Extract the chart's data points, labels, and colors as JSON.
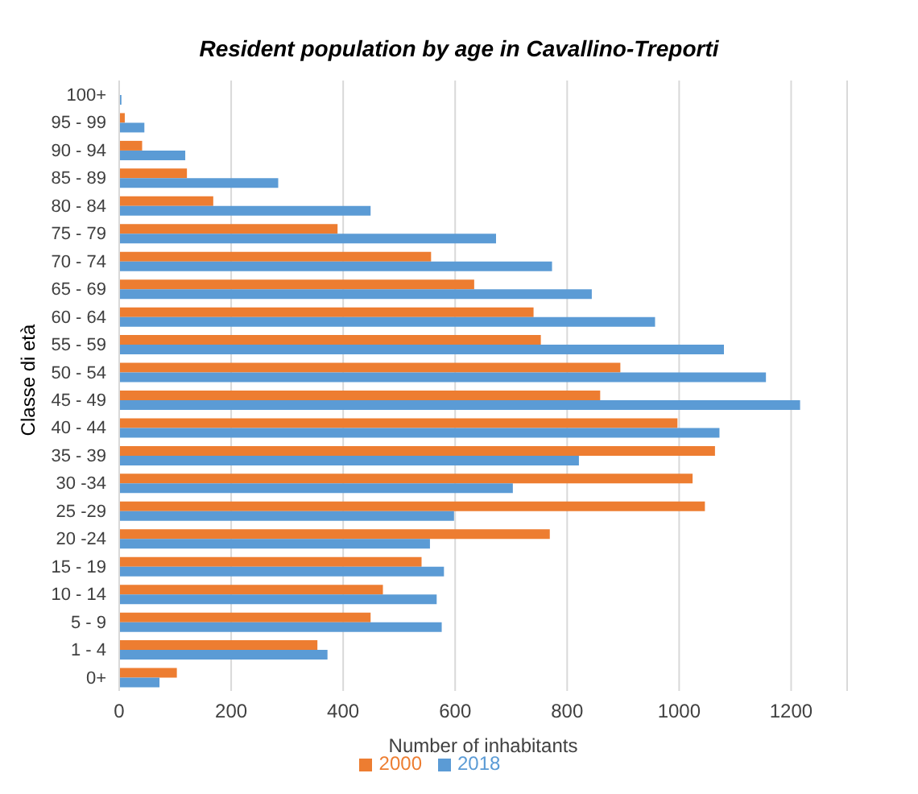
{
  "chart_data": {
    "type": "bar",
    "orientation": "horizontal",
    "title": "Resident population by age in Cavallino-Treporti",
    "xlabel": "Number of inhabitants",
    "ylabel": "Classe di età",
    "categories": [
      "100+",
      "95 - 99",
      "90 - 94",
      "85 - 89",
      "80 - 84",
      "75 - 79",
      "70 - 74",
      "65 - 69",
      "60 - 64",
      "55 - 59",
      "50 - 54",
      "45 - 49",
      "40 - 44",
      "35 - 39",
      "30 -34",
      "25 -29",
      "20 -24",
      "15 - 19",
      "10 - 14",
      "5 - 9",
      "1 - 4",
      "0+"
    ],
    "series": [
      {
        "name": "2000",
        "color": "#ed7d31",
        "values": [
          null,
          10,
          41,
          121,
          168,
          390,
          557,
          634,
          740,
          753,
          895,
          859,
          997,
          1064,
          1024,
          1046,
          769,
          540,
          471,
          449,
          354,
          103
        ]
      },
      {
        "name": "2018",
        "color": "#5b9bd5",
        "values": [
          4,
          45,
          118,
          284,
          449,
          673,
          773,
          844,
          957,
          1080,
          1155,
          1216,
          1072,
          821,
          703,
          598,
          555,
          580,
          567,
          576,
          372,
          72
        ]
      }
    ],
    "xlim": [
      0,
      1300
    ],
    "xticks": [
      0,
      200,
      400,
      600,
      800,
      1000,
      1200
    ],
    "grid": "x",
    "legend": "bottom"
  }
}
